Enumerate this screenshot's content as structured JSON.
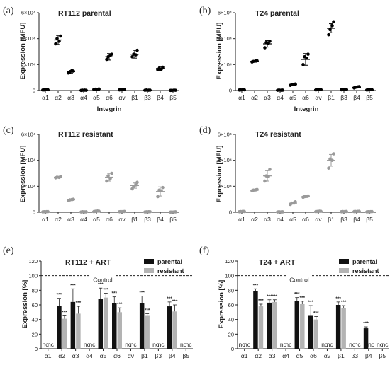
{
  "chart_data": [
    {
      "id": "a",
      "panel_label": "(a)",
      "type": "scatter",
      "title": "RT112 parental",
      "xlabel": "Integrin",
      "ylabel": "Expression [MFU]",
      "ylim": [
        0,
        60000
      ],
      "yticks": [
        "0",
        "2×10⁴",
        "4×10⁴",
        "6×10⁴"
      ],
      "categories": [
        "α1",
        "α2",
        "α3",
        "α4",
        "α5",
        "α6",
        "αv",
        "β1",
        "β3",
        "β4",
        "β5"
      ],
      "color": "#000000",
      "means": [
        500,
        39000,
        14500,
        200,
        1000,
        26000,
        600,
        28000,
        300,
        17000,
        200
      ],
      "sds": [
        300,
        3500,
        1000,
        100,
        400,
        2500,
        300,
        3000,
        150,
        1500,
        100
      ],
      "points": [
        [
          400,
          600,
          500,
          700
        ],
        [
          36000,
          42000,
          40000,
          38000
        ],
        [
          13500,
          15000,
          14000,
          15500
        ],
        [
          100,
          200,
          250,
          300
        ],
        [
          800,
          1200,
          1000,
          900
        ],
        [
          24000,
          28000,
          26000,
          27000
        ],
        [
          500,
          700,
          600,
          800
        ],
        [
          26000,
          31000,
          28000,
          27500
        ],
        [
          200,
          300,
          400,
          250
        ],
        [
          16000,
          18000,
          17000,
          16500
        ],
        [
          100,
          200,
          150,
          300
        ]
      ]
    },
    {
      "id": "b",
      "panel_label": "(b)",
      "type": "scatter",
      "title": "T24 parental",
      "xlabel": "Integrin",
      "ylabel": "Expression [MFU]",
      "ylim": [
        0,
        60000
      ],
      "yticks": [
        "0",
        "2×10⁴",
        "4×10⁴",
        "6×10⁴"
      ],
      "categories": [
        "α1",
        "α2",
        "α3",
        "α4",
        "α5",
        "α6",
        "αv",
        "β1",
        "β3",
        "β4",
        "β5"
      ],
      "color": "#000000",
      "means": [
        500,
        22500,
        36000,
        300,
        4500,
        24000,
        700,
        48000,
        800,
        2500,
        600
      ],
      "sds": [
        300,
        700,
        2500,
        150,
        500,
        4500,
        300,
        3500,
        300,
        500,
        300
      ],
      "points": [
        [
          400,
          600,
          500,
          700
        ],
        [
          22000,
          23000,
          22500,
          22800
        ],
        [
          33000,
          38000,
          37000,
          36500
        ],
        [
          200,
          300,
          400,
          250
        ],
        [
          4000,
          5000,
          4500,
          4800
        ],
        [
          20000,
          28000,
          26000,
          25000
        ],
        [
          500,
          800,
          700,
          900
        ],
        [
          43000,
          53000,
          47000,
          50000
        ],
        [
          600,
          900,
          800,
          1000
        ],
        [
          2000,
          3000,
          2500,
          2800
        ],
        [
          400,
          700,
          600,
          800
        ]
      ]
    },
    {
      "id": "c",
      "panel_label": "(c)",
      "type": "scatter",
      "title": "RT112 resistant",
      "xlabel": "Integrin",
      "ylabel": "Expression [MFU]",
      "ylim": [
        0,
        60000
      ],
      "yticks": [
        "0",
        "2×10⁴",
        "4×10⁴",
        "6×10⁴"
      ],
      "categories": [
        "α1",
        "α2",
        "α3",
        "α4",
        "α5",
        "α6",
        "αv",
        "β1",
        "β3",
        "β4",
        "β5"
      ],
      "color": "#9a9a9a",
      "means": [
        400,
        27000,
        9500,
        300,
        700,
        27000,
        500,
        20500,
        300,
        16000,
        200
      ],
      "sds": [
        200,
        700,
        600,
        150,
        300,
        3000,
        250,
        2000,
        150,
        3500,
        100
      ],
      "points": [
        [
          300,
          500,
          400,
          450
        ],
        [
          26500,
          27500,
          27000,
          26800
        ],
        [
          9000,
          10000,
          9500,
          9800
        ],
        [
          200,
          300,
          400,
          250
        ],
        [
          500,
          800,
          700,
          900
        ],
        [
          24000,
          30000,
          28000,
          26000
        ],
        [
          400,
          600,
          500,
          550
        ],
        [
          18000,
          23000,
          20000,
          21000
        ],
        [
          200,
          400,
          300,
          350
        ],
        [
          12000,
          19000,
          17000,
          16500
        ],
        [
          100,
          300,
          200,
          250
        ]
      ]
    },
    {
      "id": "d",
      "panel_label": "(d)",
      "type": "scatter",
      "title": "T24 resistant",
      "xlabel": "Integrin",
      "ylabel": "Expression [MFU]",
      "ylim": [
        0,
        60000
      ],
      "yticks": [
        "0",
        "2×10⁴",
        "4×10⁴",
        "6×10⁴"
      ],
      "categories": [
        "α1",
        "α2",
        "α3",
        "α4",
        "α5",
        "α6",
        "αv",
        "β1",
        "β3",
        "β4",
        "β5"
      ],
      "color": "#9a9a9a",
      "means": [
        500,
        17000,
        28000,
        300,
        7000,
        12000,
        600,
        40000,
        500,
        600,
        400
      ],
      "sds": [
        300,
        500,
        4000,
        150,
        800,
        700,
        300,
        4500,
        200,
        300,
        200
      ],
      "points": [
        [
          400,
          600,
          500,
          700
        ],
        [
          16500,
          17500,
          17000,
          17200
        ],
        [
          24000,
          33000,
          28000,
          27500
        ],
        [
          200,
          300,
          400,
          250
        ],
        [
          6000,
          8000,
          7000,
          7200
        ],
        [
          11500,
          12500,
          12000,
          12300
        ],
        [
          500,
          700,
          600,
          800
        ],
        [
          34000,
          45000,
          41000,
          40000
        ],
        [
          400,
          600,
          500,
          550
        ],
        [
          500,
          700,
          600,
          650
        ],
        [
          300,
          500,
          400,
          450
        ]
      ]
    },
    {
      "id": "e",
      "panel_label": "(e)",
      "type": "bar",
      "title": "RT112  + ART",
      "xlabel": "",
      "ylabel": "Expression [%]",
      "ylim": [
        0,
        120
      ],
      "yticks": [
        0,
        20,
        40,
        60,
        80,
        100,
        120
      ],
      "control_label": "Control",
      "control_value": 100,
      "categories": [
        "α1",
        "α2",
        "α3",
        "α4",
        "α5",
        "α6",
        "αv",
        "β1",
        "β3",
        "β4",
        "β5"
      ],
      "series": [
        {
          "name": "parental",
          "color": "#111111",
          "values": [
            null,
            59,
            64,
            null,
            68,
            62,
            null,
            62,
            null,
            58,
            null
          ],
          "errors": [
            null,
            10,
            18,
            null,
            15,
            9,
            null,
            10,
            null,
            6,
            null
          ],
          "stars": [
            null,
            "***",
            "***",
            null,
            "***",
            "***",
            null,
            "***",
            null,
            "***",
            null
          ]
        },
        {
          "name": "resistant",
          "color": "#b3b3b3",
          "values": [
            null,
            41,
            48,
            null,
            70,
            50,
            null,
            45,
            null,
            51,
            null
          ],
          "errors": [
            null,
            4,
            10,
            null,
            6,
            6,
            null,
            3,
            null,
            9,
            null
          ],
          "stars": [
            null,
            "***",
            "***",
            null,
            "***",
            "***",
            null,
            "***",
            null,
            "***",
            null
          ]
        }
      ],
      "nc_label": "nc",
      "nc": [
        [
          true,
          true
        ],
        [
          false,
          false
        ],
        [
          false,
          false
        ],
        [
          true,
          true
        ],
        [
          false,
          false
        ],
        [
          false,
          false
        ],
        [
          true,
          true
        ],
        [
          false,
          false
        ],
        [
          true,
          true
        ],
        [
          false,
          false
        ],
        [
          true,
          true
        ]
      ]
    },
    {
      "id": "f",
      "panel_label": "(f)",
      "type": "bar",
      "title": "T24 + ART",
      "xlabel": "",
      "ylabel": "Expression [%]",
      "ylim": [
        0,
        120
      ],
      "yticks": [
        0,
        20,
        40,
        60,
        80,
        100,
        120
      ],
      "control_label": "Control",
      "control_value": 100,
      "categories": [
        "α1",
        "α2",
        "α3",
        "α4",
        "α5",
        "α6",
        "αv",
        "β1",
        "β3",
        "β4",
        "β5"
      ],
      "series": [
        {
          "name": "parental",
          "color": "#111111",
          "values": [
            null,
            79,
            63,
            null,
            65,
            45,
            null,
            60,
            null,
            28,
            null
          ],
          "errors": [
            null,
            3,
            4,
            null,
            5,
            14,
            null,
            4,
            null,
            2,
            null
          ],
          "stars": [
            null,
            "***",
            "***",
            null,
            "***",
            "***",
            null,
            "***",
            null,
            "***",
            null
          ]
        },
        {
          "name": "resistant",
          "color": "#b3b3b3",
          "values": [
            null,
            58,
            64,
            null,
            61,
            40,
            null,
            56,
            null,
            null,
            null
          ],
          "errors": [
            null,
            3,
            3,
            null,
            4,
            4,
            null,
            3,
            null,
            null,
            null
          ],
          "stars": [
            null,
            "***",
            "***",
            null,
            "***",
            "***",
            null,
            "***",
            null,
            null,
            null
          ]
        }
      ],
      "nc_label": "nc",
      "nc": [
        [
          true,
          true
        ],
        [
          false,
          false
        ],
        [
          false,
          false
        ],
        [
          true,
          true
        ],
        [
          false,
          false
        ],
        [
          false,
          false
        ],
        [
          true,
          true
        ],
        [
          false,
          false
        ],
        [
          true,
          true
        ],
        [
          false,
          true
        ],
        [
          true,
          true
        ]
      ]
    }
  ]
}
